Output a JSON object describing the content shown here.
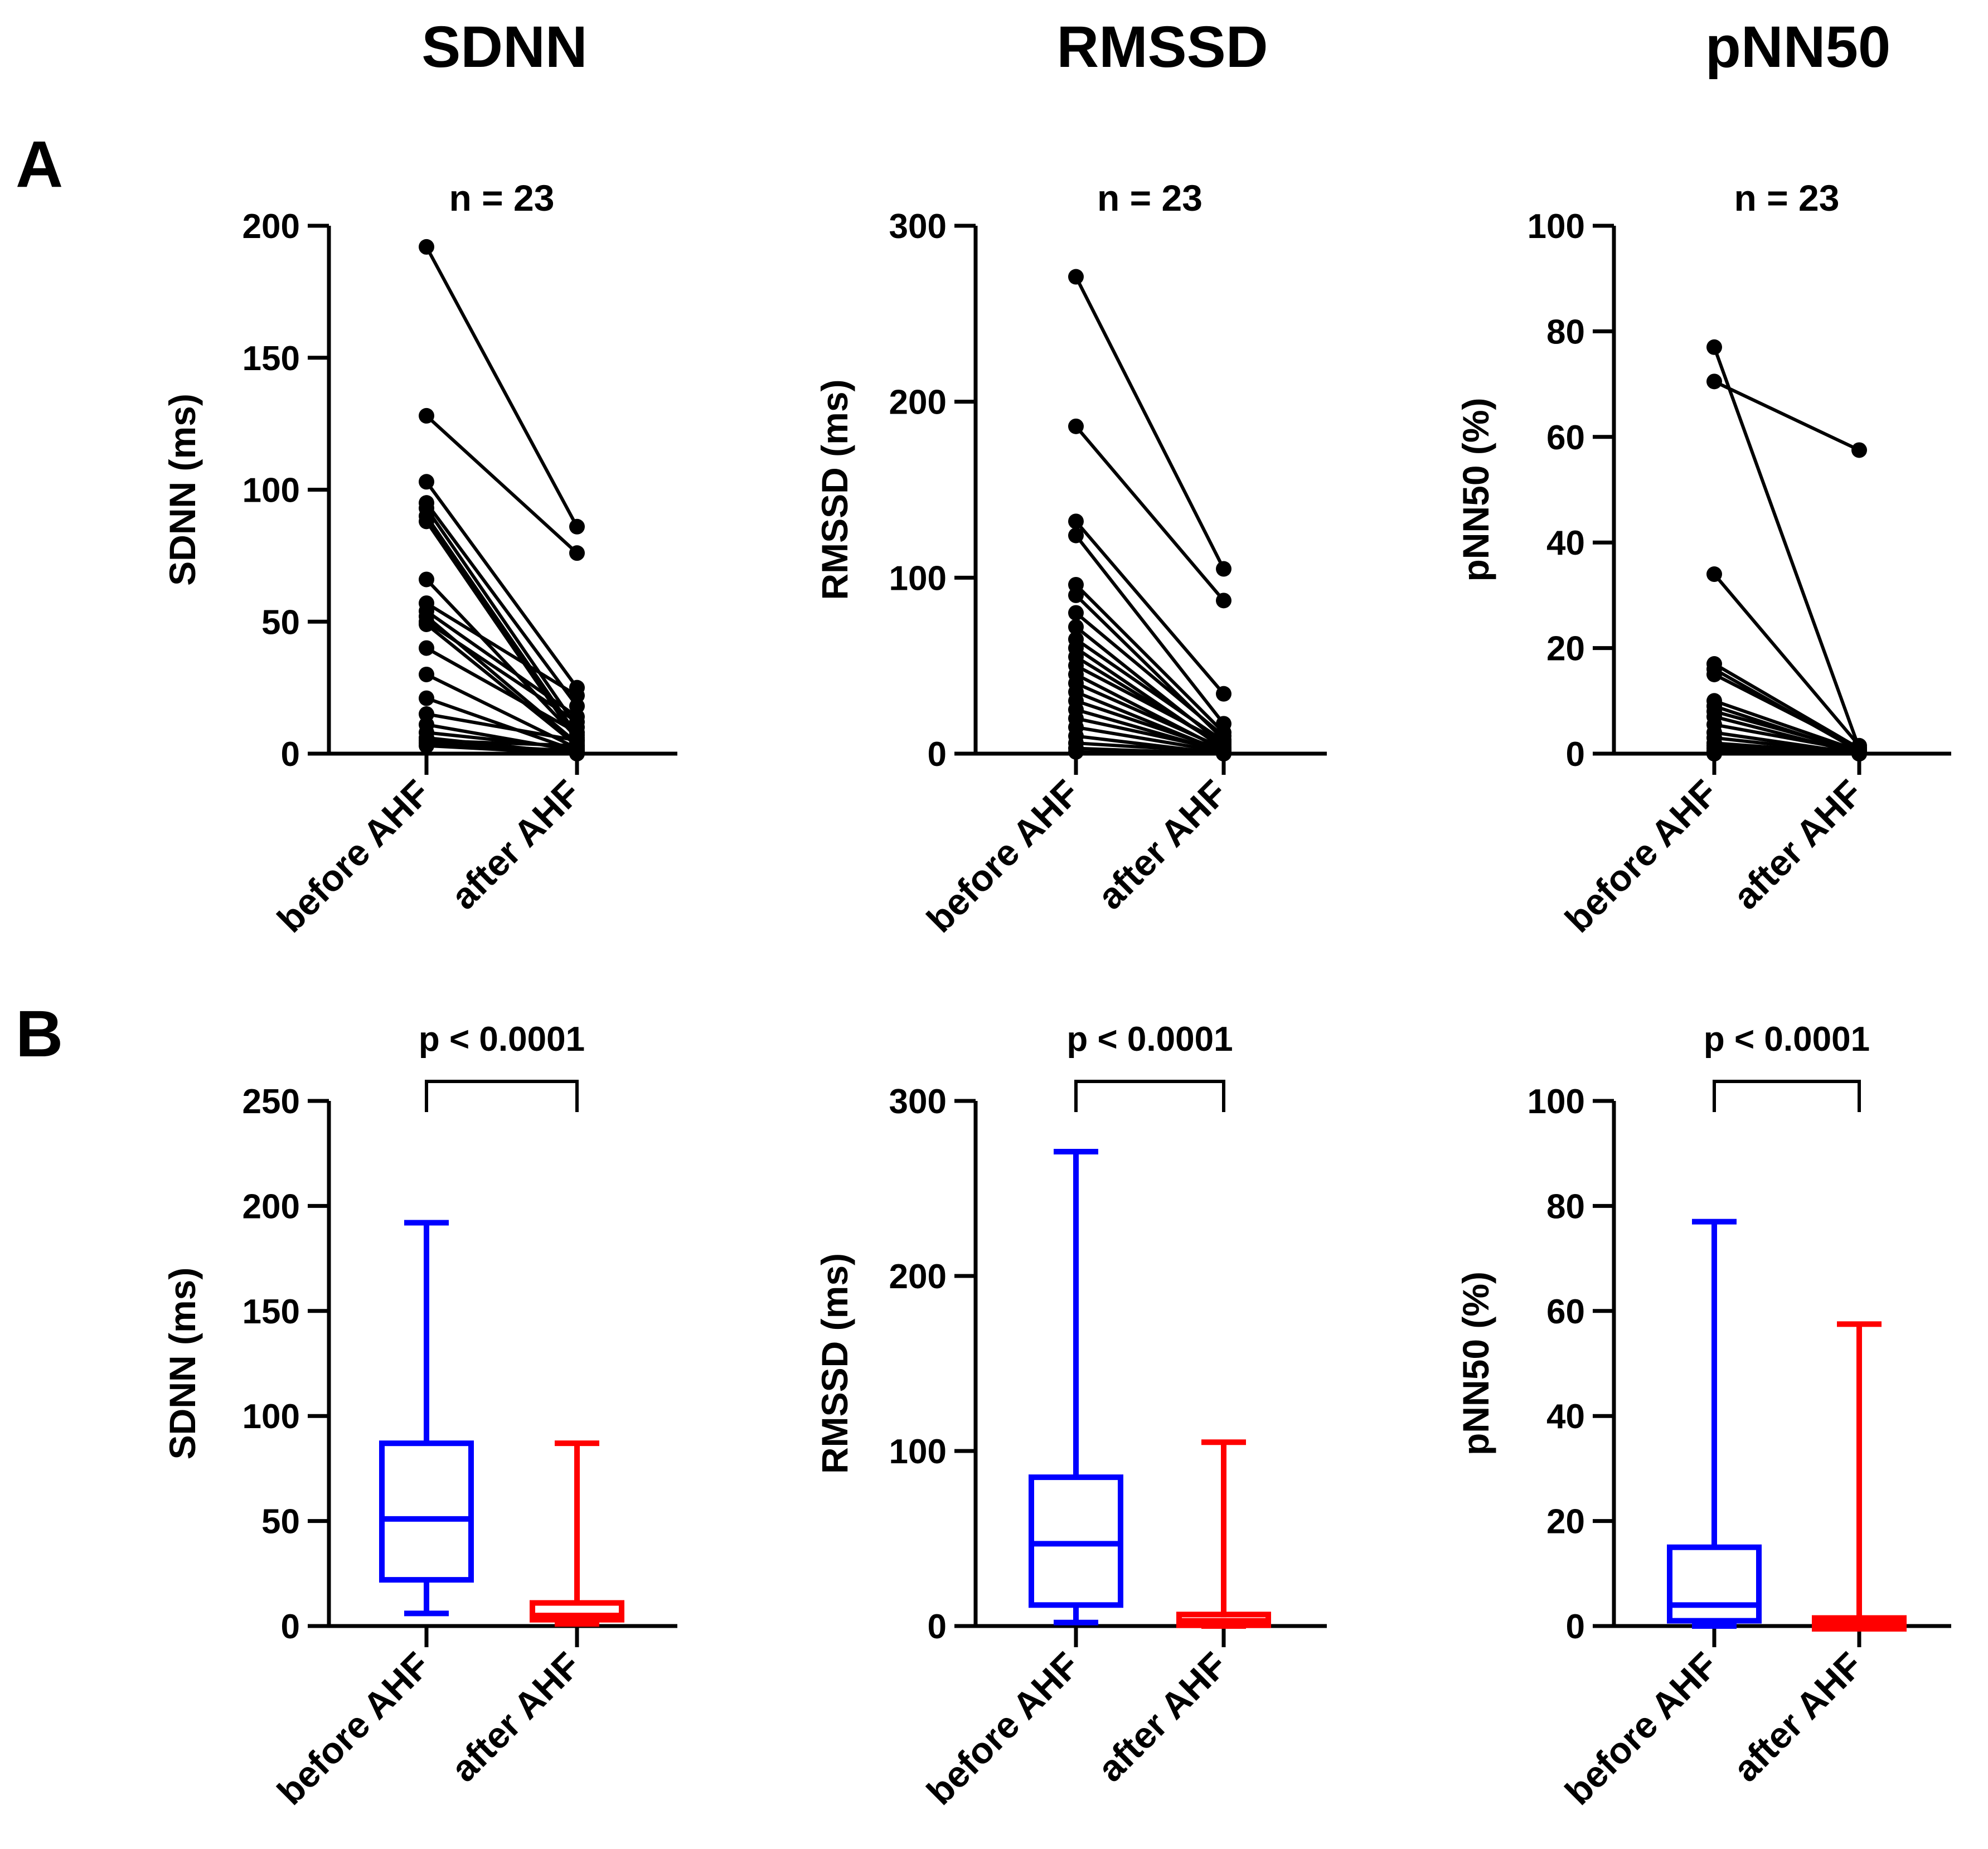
{
  "column_titles": [
    "SDNN",
    "RMSSD",
    "pNN50"
  ],
  "row_labels": [
    "A",
    "B"
  ],
  "colors": {
    "axis": "#000000",
    "before": "#0000ff",
    "after": "#ff0000",
    "line": "#000000"
  },
  "chart_data": [
    {
      "id": "A-SDNN",
      "type": "paired-line",
      "annotation": "n = 23",
      "ylabel": "SDNN (ms)",
      "ylim": [
        0,
        200
      ],
      "yticks": [
        0,
        50,
        100,
        150,
        200
      ],
      "categories": [
        "before AHF",
        "after AHF"
      ],
      "pairs": [
        [
          192,
          86
        ],
        [
          128,
          76
        ],
        [
          103,
          25
        ],
        [
          95,
          18
        ],
        [
          93,
          10
        ],
        [
          90,
          7
        ],
        [
          88,
          5
        ],
        [
          66,
          6
        ],
        [
          57,
          22
        ],
        [
          54,
          14
        ],
        [
          52,
          4
        ],
        [
          50,
          12
        ],
        [
          49,
          3
        ],
        [
          40,
          8
        ],
        [
          30,
          2
        ],
        [
          21,
          1
        ],
        [
          15,
          5
        ],
        [
          11,
          1
        ],
        [
          8,
          2
        ],
        [
          6,
          0
        ],
        [
          5,
          3
        ],
        [
          4,
          1
        ],
        [
          3,
          0
        ]
      ]
    },
    {
      "id": "A-RMSSD",
      "type": "paired-line",
      "annotation": "n = 23",
      "ylabel": "RMSSD (ms)",
      "ylim": [
        0,
        300
      ],
      "yticks": [
        0,
        100,
        200,
        300
      ],
      "categories": [
        "before AHF",
        "after AHF"
      ],
      "pairs": [
        [
          271,
          105
        ],
        [
          186,
          87
        ],
        [
          132,
          34
        ],
        [
          124,
          17
        ],
        [
          96,
          12
        ],
        [
          90,
          8
        ],
        [
          80,
          10
        ],
        [
          72,
          5
        ],
        [
          65,
          7
        ],
        [
          60,
          3
        ],
        [
          55,
          4
        ],
        [
          50,
          6
        ],
        [
          45,
          2
        ],
        [
          40,
          3
        ],
        [
          35,
          1
        ],
        [
          30,
          2
        ],
        [
          25,
          1
        ],
        [
          20,
          2
        ],
        [
          15,
          1
        ],
        [
          10,
          0
        ],
        [
          6,
          1
        ],
        [
          3,
          0
        ],
        [
          1,
          0
        ]
      ]
    },
    {
      "id": "A-pNN50",
      "type": "paired-line",
      "annotation": "n = 23",
      "ylabel": "pNN50 (%)",
      "ylim": [
        0,
        100
      ],
      "yticks": [
        0,
        20,
        40,
        60,
        80,
        100
      ],
      "categories": [
        "before AHF",
        "after AHF"
      ],
      "pairs": [
        [
          77,
          1
        ],
        [
          70.5,
          57.5
        ],
        [
          34,
          1.5
        ],
        [
          17,
          1
        ],
        [
          16,
          0.5
        ],
        [
          15,
          1
        ],
        [
          10,
          0.5
        ],
        [
          9,
          0
        ],
        [
          8,
          0.5
        ],
        [
          7,
          0
        ],
        [
          5.5,
          0.5
        ],
        [
          4,
          0
        ],
        [
          3,
          0
        ],
        [
          2,
          0
        ],
        [
          1.5,
          0
        ],
        [
          1,
          0
        ],
        [
          0.5,
          0
        ],
        [
          0.3,
          0
        ],
        [
          0.2,
          0
        ],
        [
          0.1,
          0
        ],
        [
          0,
          0
        ],
        [
          0,
          0
        ],
        [
          0,
          0
        ]
      ]
    },
    {
      "id": "B-SDNN",
      "type": "boxplot",
      "annotation": "p < 0.0001",
      "ylabel": "SDNN (ms)",
      "ylim": [
        0,
        250
      ],
      "yticks": [
        0,
        50,
        100,
        150,
        200,
        250
      ],
      "categories": [
        "before AHF",
        "after AHF"
      ],
      "boxes": [
        {
          "min": 6,
          "q1": 22,
          "median": 51,
          "q3": 87,
          "max": 192
        },
        {
          "min": 1,
          "q1": 3,
          "median": 5,
          "q3": 11,
          "max": 87
        }
      ]
    },
    {
      "id": "B-RMSSD",
      "type": "boxplot",
      "annotation": "p < 0.0001",
      "ylabel": "RMSSD (ms)",
      "ylim": [
        0,
        300
      ],
      "yticks": [
        0,
        100,
        200,
        300
      ],
      "categories": [
        "before AHF",
        "after AHF"
      ],
      "boxes": [
        {
          "min": 2,
          "q1": 12,
          "median": 47,
          "q3": 85,
          "max": 271
        },
        {
          "min": 0,
          "q1": 2,
          "median": 3,
          "q3": 5,
          "max": 105
        }
      ]
    },
    {
      "id": "B-pNN50",
      "type": "boxplot",
      "annotation": "p < 0.0001",
      "ylabel": "pNN50 (%)",
      "ylim": [
        0,
        100
      ],
      "yticks": [
        0,
        20,
        40,
        60,
        80,
        100
      ],
      "categories": [
        "before AHF",
        "after AHF"
      ],
      "boxes": [
        {
          "min": 0,
          "q1": 1,
          "median": 4,
          "q3": 15,
          "max": 77
        },
        {
          "min": 0,
          "q1": 0,
          "median": 0.5,
          "q3": 1,
          "max": 57.5
        }
      ]
    }
  ]
}
